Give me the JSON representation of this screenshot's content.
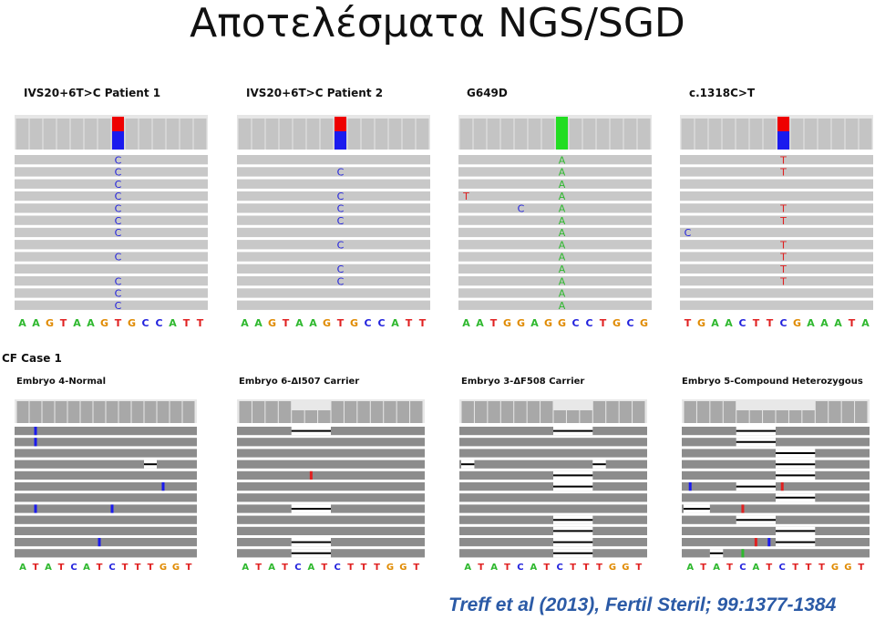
{
  "title": "Αποτελέσματα NGS/SGD",
  "citation": "Treff et al (2013), Fertil Steril; 99:1377-1384",
  "section_label": "CF Case 1",
  "colors": {
    "A": "#2eb82e",
    "C": "#2222dd",
    "G": "#e08a00",
    "T": "#e02020",
    "read": "#c8c8c8",
    "alt_red": "#ee0000",
    "alt_blue": "#1a1aee",
    "alt_green": "#22dd22"
  },
  "top_panels": [
    {
      "label": "IVS20+6T>C Patient 1",
      "reference": "AAGTAAGTGCCATT",
      "marker_pos": 7,
      "marker": [
        "red",
        "blue"
      ],
      "calls": [
        {
          "row": 0,
          "pos": 7,
          "base": "C"
        },
        {
          "row": 1,
          "pos": 7,
          "base": "C"
        },
        {
          "row": 2,
          "pos": 7,
          "base": "C"
        },
        {
          "row": 3,
          "pos": 7,
          "base": "C"
        },
        {
          "row": 4,
          "pos": 7,
          "base": "C"
        },
        {
          "row": 5,
          "pos": 7,
          "base": "C"
        },
        {
          "row": 6,
          "pos": 7,
          "base": "C"
        },
        {
          "row": 8,
          "pos": 7,
          "base": "C"
        },
        {
          "row": 10,
          "pos": 7,
          "base": "C"
        },
        {
          "row": 11,
          "pos": 7,
          "base": "C"
        },
        {
          "row": 12,
          "pos": 7,
          "base": "C"
        }
      ]
    },
    {
      "label": "IVS20+6T>C Patient 2",
      "reference": "AAGTAAGTGCCATT",
      "marker_pos": 7,
      "marker": [
        "red",
        "blue"
      ],
      "calls": [
        {
          "row": 1,
          "pos": 7,
          "base": "C"
        },
        {
          "row": 3,
          "pos": 7,
          "base": "C"
        },
        {
          "row": 4,
          "pos": 7,
          "base": "C"
        },
        {
          "row": 5,
          "pos": 7,
          "base": "C"
        },
        {
          "row": 7,
          "pos": 7,
          "base": "C"
        },
        {
          "row": 9,
          "pos": 7,
          "base": "C"
        },
        {
          "row": 10,
          "pos": 7,
          "base": "C"
        }
      ]
    },
    {
      "label": "G649D",
      "reference": "AATGGAGGCCTGCG",
      "marker_pos": 7,
      "marker": [
        "green"
      ],
      "calls": [
        {
          "row": 0,
          "pos": 7,
          "base": "A"
        },
        {
          "row": 1,
          "pos": 7,
          "base": "A"
        },
        {
          "row": 2,
          "pos": 7,
          "base": "A"
        },
        {
          "row": 3,
          "pos": 7,
          "base": "A"
        },
        {
          "row": 3,
          "pos": 0,
          "base": "T"
        },
        {
          "row": 4,
          "pos": 4,
          "base": "C"
        },
        {
          "row": 4,
          "pos": 7,
          "base": "A"
        },
        {
          "row": 5,
          "pos": 7,
          "base": "A"
        },
        {
          "row": 6,
          "pos": 7,
          "base": "A"
        },
        {
          "row": 7,
          "pos": 7,
          "base": "A"
        },
        {
          "row": 8,
          "pos": 7,
          "base": "A"
        },
        {
          "row": 9,
          "pos": 7,
          "base": "A"
        },
        {
          "row": 10,
          "pos": 7,
          "base": "A"
        },
        {
          "row": 11,
          "pos": 7,
          "base": "A"
        },
        {
          "row": 12,
          "pos": 7,
          "base": "A"
        }
      ]
    },
    {
      "label": "c.1318C>T",
      "reference": "TGAACTTCGAAATA",
      "marker_pos": 7,
      "marker": [
        "red",
        "blue"
      ],
      "calls": [
        {
          "row": 0,
          "pos": 7,
          "base": "T"
        },
        {
          "row": 1,
          "pos": 7,
          "base": "T"
        },
        {
          "row": 4,
          "pos": 7,
          "base": "T"
        },
        {
          "row": 5,
          "pos": 7,
          "base": "T"
        },
        {
          "row": 6,
          "pos": 0,
          "base": "C"
        },
        {
          "row": 7,
          "pos": 7,
          "base": "T"
        },
        {
          "row": 8,
          "pos": 7,
          "base": "T"
        },
        {
          "row": 9,
          "pos": 7,
          "base": "T"
        },
        {
          "row": 10,
          "pos": 7,
          "base": "T"
        }
      ]
    }
  ],
  "bottom_panels": [
    {
      "label": "Embryo 4-Normal",
      "reference": "ATATCATCTTTGGT",
      "gaps": [
        {
          "row": 3,
          "start": 10,
          "len": 1
        }
      ],
      "marks": [
        {
          "row": 0,
          "pos": 1,
          "color": "#1a1aee"
        },
        {
          "row": 1,
          "pos": 1,
          "color": "#1a1aee"
        },
        {
          "row": 5,
          "pos": 11,
          "color": "#1a1aee"
        },
        {
          "row": 7,
          "pos": 1,
          "color": "#1a1aee"
        },
        {
          "row": 7,
          "pos": 7,
          "color": "#1a1aee"
        },
        {
          "row": 10,
          "pos": 6,
          "color": "#1a1aee"
        }
      ]
    },
    {
      "label": "Embryo 6-ΔI507 Carrier",
      "reference": "ATATCATCTTTGGT",
      "gaps": [
        {
          "row": 0,
          "start": 4,
          "len": 3
        },
        {
          "row": 7,
          "start": 4,
          "len": 3
        },
        {
          "row": 10,
          "start": 4,
          "len": 3
        },
        {
          "row": 11,
          "start": 4,
          "len": 3
        }
      ],
      "marks": [
        {
          "row": 4,
          "pos": 5,
          "color": "#e02020"
        }
      ]
    },
    {
      "label": "Embryo 3-ΔF508 Carrier",
      "reference": "ATATCATCTTTGGT",
      "gaps": [
        {
          "row": 0,
          "start": 7,
          "len": 3
        },
        {
          "row": 3,
          "start": 0,
          "len": 1
        },
        {
          "row": 3,
          "start": 10,
          "len": 1
        },
        {
          "row": 4,
          "start": 7,
          "len": 3
        },
        {
          "row": 5,
          "start": 7,
          "len": 3
        },
        {
          "row": 8,
          "start": 7,
          "len": 3
        },
        {
          "row": 9,
          "start": 7,
          "len": 3
        },
        {
          "row": 10,
          "start": 7,
          "len": 3
        },
        {
          "row": 11,
          "start": 7,
          "len": 3
        }
      ],
      "marks": []
    },
    {
      "label": "Embryo 5-Compound Heterozygous",
      "reference": "ATATCATCTTTGGT",
      "gaps": [
        {
          "row": 0,
          "start": 4,
          "len": 3
        },
        {
          "row": 1,
          "start": 4,
          "len": 3
        },
        {
          "row": 2,
          "start": 7,
          "len": 3
        },
        {
          "row": 3,
          "start": 7,
          "len": 3
        },
        {
          "row": 4,
          "start": 7,
          "len": 3
        },
        {
          "row": 5,
          "start": 4,
          "len": 3
        },
        {
          "row": 6,
          "start": 7,
          "len": 3
        },
        {
          "row": 7,
          "start": 0,
          "len": 2
        },
        {
          "row": 8,
          "start": 4,
          "len": 3
        },
        {
          "row": 9,
          "start": 7,
          "len": 3
        },
        {
          "row": 10,
          "start": 7,
          "len": 3
        },
        {
          "row": 11,
          "start": 2,
          "len": 1
        }
      ],
      "marks": [
        {
          "row": 5,
          "pos": 0,
          "color": "#1a1aee"
        },
        {
          "row": 5,
          "pos": 7,
          "color": "#e02020"
        },
        {
          "row": 7,
          "pos": 4,
          "color": "#e02020"
        },
        {
          "row": 10,
          "pos": 5,
          "color": "#e02020"
        },
        {
          "row": 10,
          "pos": 6,
          "color": "#1a1aee"
        },
        {
          "row": 11,
          "pos": 4,
          "color": "#2eb82e"
        }
      ]
    }
  ]
}
